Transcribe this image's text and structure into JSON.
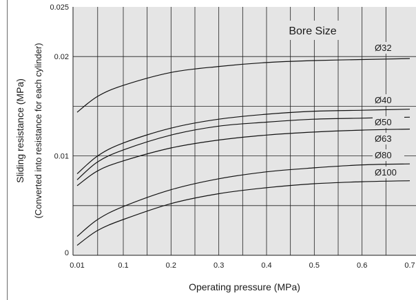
{
  "chart_data": {
    "type": "line",
    "xlabel": "Operating pressure (MPa)",
    "ylabel": "Sliding resistance (MPa)",
    "ylabel2": "(Converted into resistance for each cylinder)",
    "legend_title": "Bore Size",
    "xlim": [
      0.01,
      0.7
    ],
    "ylim": [
      0,
      0.025
    ],
    "x_ticks": [
      {
        "value": 0.01,
        "label": "0.01"
      },
      {
        "value": 0.1,
        "label": "0.1"
      },
      {
        "value": 0.2,
        "label": "0.2"
      },
      {
        "value": 0.3,
        "label": "0.3"
      },
      {
        "value": 0.4,
        "label": "0.4"
      },
      {
        "value": 0.5,
        "label": "0.5"
      },
      {
        "value": 0.6,
        "label": "0.6"
      },
      {
        "value": 0.7,
        "label": "0.7"
      }
    ],
    "y_ticks": [
      {
        "value": 0,
        "label": "0"
      },
      {
        "value": 0.01,
        "label": "0.01"
      },
      {
        "value": 0.02,
        "label": "0.02"
      },
      {
        "value": 0.025,
        "label": "0.025"
      }
    ],
    "x_grid": [
      0.05,
      0.1,
      0.15,
      0.2,
      0.25,
      0.3,
      0.35,
      0.4,
      0.45,
      0.5,
      0.55,
      0.6,
      0.65
    ],
    "y_grid": [
      0.005,
      0.01,
      0.015,
      0.02
    ],
    "grid": true,
    "series": [
      {
        "name": "Ø32",
        "x": [
          0.01,
          0.05,
          0.1,
          0.2,
          0.3,
          0.4,
          0.5,
          0.6,
          0.7
        ],
        "y": [
          0.0144,
          0.016,
          0.0171,
          0.0184,
          0.019,
          0.0194,
          0.0196,
          0.0197,
          0.0198
        ]
      },
      {
        "name": "Ø40",
        "x": [
          0.01,
          0.05,
          0.1,
          0.2,
          0.3,
          0.4,
          0.5,
          0.6,
          0.7
        ],
        "y": [
          0.0082,
          0.01,
          0.0113,
          0.0128,
          0.0137,
          0.0142,
          0.0145,
          0.0146,
          0.0147
        ]
      },
      {
        "name": "Ø50",
        "x": [
          0.01,
          0.05,
          0.1,
          0.2,
          0.3,
          0.4,
          0.5,
          0.6,
          0.7
        ],
        "y": [
          0.0076,
          0.0094,
          0.0106,
          0.0121,
          0.013,
          0.0134,
          0.0137,
          0.0138,
          0.0139
        ]
      },
      {
        "name": "Ø63",
        "x": [
          0.01,
          0.05,
          0.1,
          0.2,
          0.3,
          0.4,
          0.5,
          0.6,
          0.7
        ],
        "y": [
          0.007,
          0.0085,
          0.0095,
          0.0108,
          0.0116,
          0.0121,
          0.0124,
          0.0126,
          0.0127
        ]
      },
      {
        "name": "Ø80",
        "x": [
          0.01,
          0.05,
          0.1,
          0.2,
          0.3,
          0.4,
          0.5,
          0.6,
          0.7
        ],
        "y": [
          0.0019,
          0.0036,
          0.0049,
          0.0066,
          0.0077,
          0.0084,
          0.0088,
          0.0091,
          0.0092
        ]
      },
      {
        "name": "Ø100",
        "x": [
          0.01,
          0.05,
          0.1,
          0.2,
          0.3,
          0.4,
          0.5,
          0.6,
          0.7
        ],
        "y": [
          0.001,
          0.0025,
          0.0036,
          0.0052,
          0.0062,
          0.0068,
          0.0072,
          0.0074,
          0.0075
        ]
      }
    ]
  }
}
